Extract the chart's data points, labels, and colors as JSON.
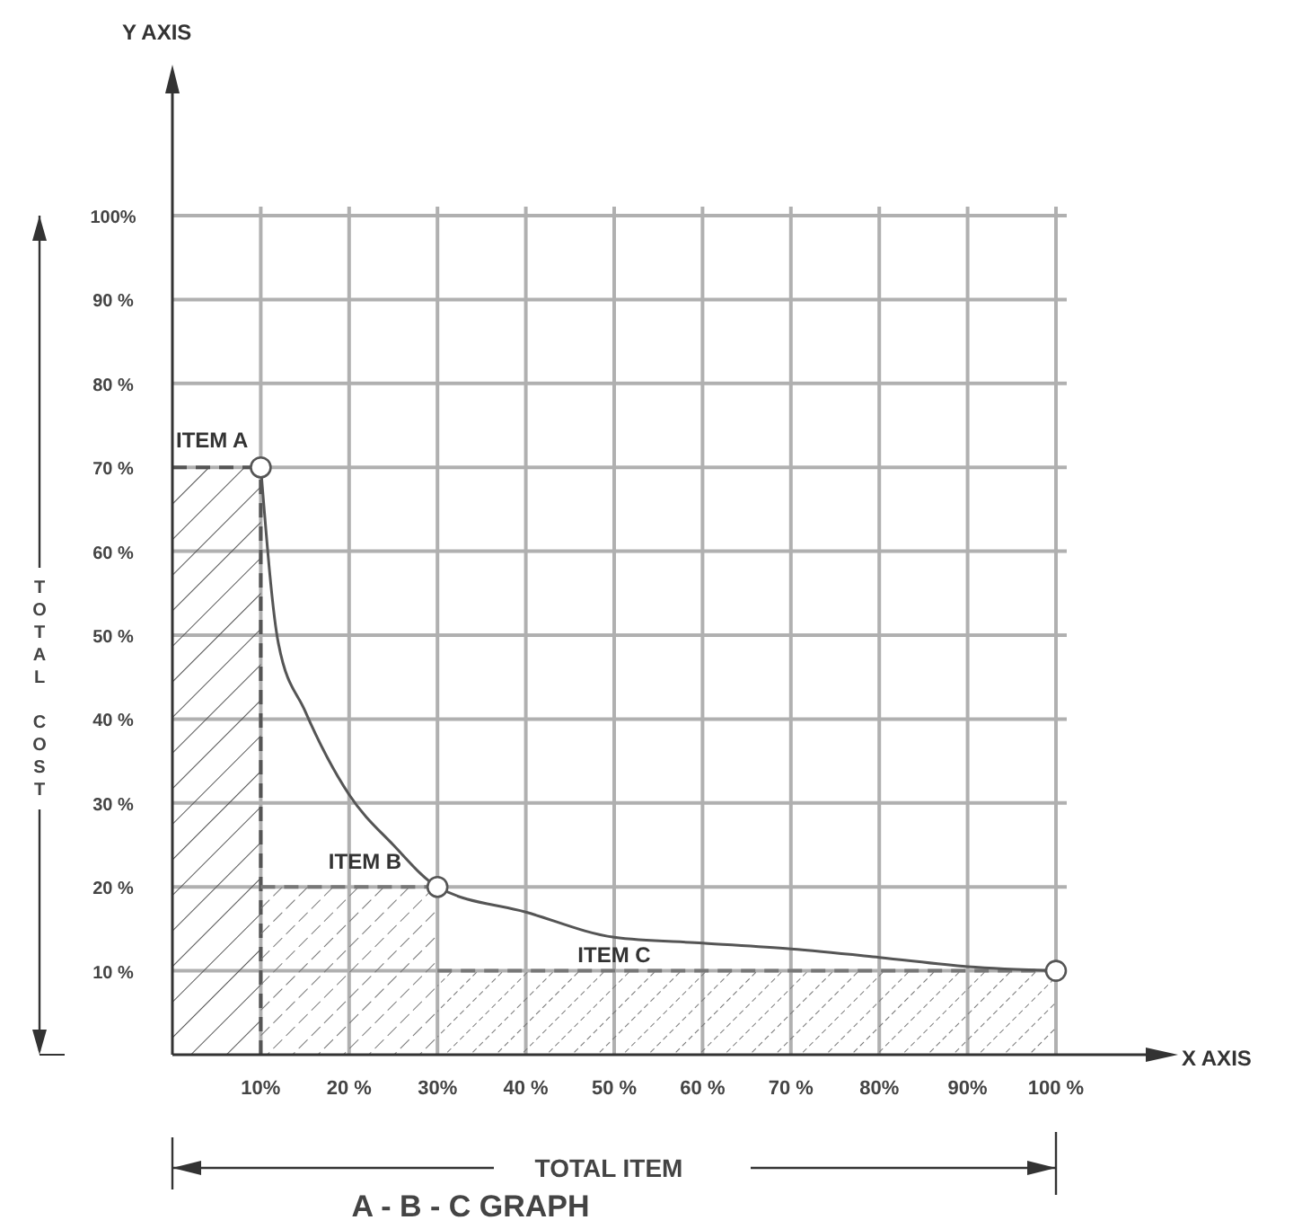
{
  "chart_data": {
    "type": "line",
    "title": "A - B - C  GRAPH",
    "xlabel": "TOTAL ITEM",
    "ylabel": "TOTAL COST",
    "xlim": [
      0,
      100
    ],
    "ylim": [
      0,
      100
    ],
    "xticks": [
      {
        "value": 10,
        "label": "10%"
      },
      {
        "value": 20,
        "label": "20 %"
      },
      {
        "value": 30,
        "label": "30%"
      },
      {
        "value": 40,
        "label": "40 %"
      },
      {
        "value": 50,
        "label": "50 %"
      },
      {
        "value": 60,
        "label": "60 %"
      },
      {
        "value": 70,
        "label": "70 %"
      },
      {
        "value": 80,
        "label": "80%"
      },
      {
        "value": 90,
        "label": "90%"
      },
      {
        "value": 100,
        "label": "100 %"
      }
    ],
    "yticks": [
      {
        "value": 10,
        "label": "10 %"
      },
      {
        "value": 20,
        "label": "20 %"
      },
      {
        "value": 30,
        "label": "30 %"
      },
      {
        "value": 40,
        "label": "40 %"
      },
      {
        "value": 50,
        "label": "50 %"
      },
      {
        "value": 60,
        "label": "60 %"
      },
      {
        "value": 70,
        "label": "70 %"
      },
      {
        "value": 80,
        "label": "80 %"
      },
      {
        "value": 90,
        "label": "90 %"
      },
      {
        "value": 100,
        "label": "100%"
      }
    ],
    "grid": true,
    "series": [
      {
        "type": "area",
        "color": "#555555",
        "x": [
          0,
          10
        ],
        "values": [
          70,
          70
        ],
        "line_style": "dashed"
      },
      {
        "type": "area",
        "color": "#777777",
        "x": [
          10,
          30
        ],
        "values": [
          20,
          20
        ],
        "line_style": "dashed"
      },
      {
        "type": "area",
        "color": "#777777",
        "x": [
          30,
          100
        ],
        "values": [
          10,
          10
        ],
        "line_style": "dashed"
      },
      {
        "color": "#555555",
        "x": [
          10,
          12,
          15,
          20,
          25,
          30,
          40,
          50,
          60,
          70,
          80,
          90,
          100
        ],
        "values": [
          70,
          49,
          41,
          31,
          25,
          20,
          17,
          14,
          13.3,
          12.6,
          11.6,
          10.5,
          10
        ],
        "marker": "none"
      },
      {
        "type": "scatter",
        "color": "#555555",
        "x": [
          10,
          30,
          100
        ],
        "values": [
          70,
          20,
          10
        ],
        "marker": "circle"
      }
    ],
    "annotations": [
      "Y AXIS",
      "X AXIS",
      {
        "text": "ITEM A",
        "x": 10,
        "y": 70
      },
      {
        "text": "ITEM B",
        "x": 30,
        "y": 20
      },
      {
        "text": "ITEM C",
        "x": 50,
        "y": 10
      }
    ]
  }
}
